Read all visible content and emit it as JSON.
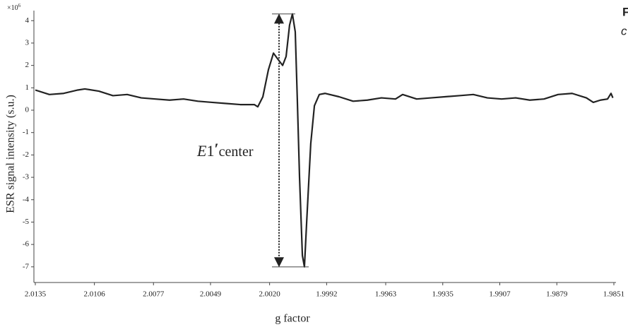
{
  "chart_data": {
    "type": "line",
    "x_label": "g factor",
    "y_label": "ESR signal intensity (s.u.)",
    "y_multiplier": "×10",
    "y_multiplier_exp": "6",
    "annotation": [
      "E",
      "1",
      "′",
      "center"
    ],
    "side_text": [
      "F",
      "c"
    ],
    "color": "#222222",
    "x": [
      2.0135,
      2.01281,
      2.01211,
      2.01142,
      2.01107,
      2.01038,
      2.00969,
      2.00899,
      2.0083,
      2.00761,
      2.00691,
      2.00622,
      2.00552,
      2.00483,
      2.00414,
      2.00344,
      2.00275,
      2.00258,
      2.00233,
      2.00206,
      2.00181,
      2.00161,
      2.00136,
      2.00119,
      2.00102,
      2.00088,
      2.00074,
      2.00064,
      2.00053,
      2.00039,
      2.00029,
      2.00018,
      1.99998,
      1.9998,
      1.99956,
      1.99928,
      1.99859,
      1.9979,
      1.9972,
      1.99651,
      1.99582,
      1.99547,
      1.99478,
      1.99408,
      1.99339,
      1.99269,
      1.992,
      1.99131,
      1.99061,
      1.98992,
      1.98923,
      1.98853,
      1.98784,
      1.98715,
      1.98645,
      1.98611,
      1.98576,
      1.98541,
      1.98524,
      1.98515
    ],
    "values": [
      0.9,
      0.7,
      0.75,
      0.9,
      0.95,
      0.85,
      0.65,
      0.7,
      0.55,
      0.5,
      0.45,
      0.5,
      0.4,
      0.35,
      0.3,
      0.25,
      0.25,
      0.15,
      0.6,
      1.8,
      2.55,
      2.3,
      2.0,
      2.4,
      3.8,
      4.3,
      3.5,
      0.5,
      -3,
      -6.5,
      -7.0,
      -5,
      -1.5,
      0.2,
      0.7,
      0.75,
      0.6,
      0.4,
      0.45,
      0.55,
      0.5,
      0.7,
      0.5,
      0.55,
      0.6,
      0.65,
      0.7,
      0.55,
      0.5,
      0.55,
      0.45,
      0.5,
      0.7,
      0.75,
      0.55,
      0.35,
      0.45,
      0.5,
      0.75,
      0.55
    ],
    "xlim": [
      2.0135,
      1.9851
    ],
    "ylim": [
      -7.7,
      4.45
    ],
    "xticks": [
      2.0135,
      2.0106,
      2.0077,
      2.0049,
      {
        "value": 2.002,
        "label": "2.0020"
      },
      1.9992,
      1.9963,
      1.9935,
      1.9907,
      1.9879,
      1.9851
    ],
    "yticks": [
      -7,
      -6,
      -5,
      -4,
      -3,
      -2,
      -1,
      0,
      1,
      2,
      3,
      4
    ]
  }
}
